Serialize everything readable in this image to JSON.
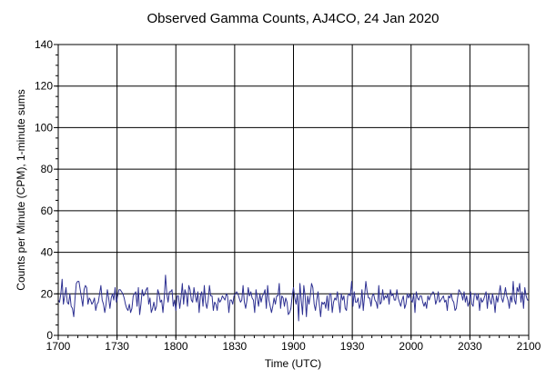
{
  "colors": {
    "background": "#ffffff",
    "grid": "#000000",
    "series": "#2e3192"
  },
  "chart_data": {
    "type": "line",
    "title": "Observed Gamma Counts, AJ4CO, 24 Jan 2020",
    "xlabel": "Time (UTC)",
    "ylabel": "Counts per Minute (CPM), 1-minute sums",
    "xlim": [
      1700,
      2100
    ],
    "ylim": [
      0,
      140
    ],
    "x_ticks": [
      "1700",
      "1730",
      "1800",
      "1830",
      "1900",
      "1930",
      "2000",
      "2030",
      "2100"
    ],
    "y_ticks": [
      "0",
      "20",
      "40",
      "60",
      "80",
      "100",
      "120",
      "140"
    ],
    "grid": true,
    "legend": "none",
    "series": [
      {
        "sample_interval": "1 minute",
        "start": "1700",
        "end": "2100",
        "values": [
          17,
          16,
          20,
          27,
          15,
          19,
          23,
          16,
          15,
          20,
          14,
          13,
          9,
          18,
          25,
          26,
          26,
          22,
          18,
          14,
          22,
          24,
          23,
          15,
          18,
          17,
          15,
          16,
          18,
          12,
          15,
          16,
          20,
          24,
          17,
          15,
          11,
          15,
          22,
          18,
          13,
          18,
          20,
          17,
          23,
          16,
          19,
          22,
          22,
          21,
          20,
          18,
          15,
          13,
          12,
          15,
          11,
          13,
          19,
          20,
          21,
          14,
          23,
          10,
          15,
          22,
          19,
          20,
          22,
          23,
          15,
          18,
          11,
          13,
          16,
          12,
          14,
          22,
          20,
          16,
          17,
          11,
          18,
          29,
          20,
          16,
          21,
          21,
          22,
          14,
          17,
          12,
          19,
          19,
          13,
          18,
          25,
          15,
          22,
          20,
          14,
          24,
          22,
          17,
          16,
          23,
          19,
          16,
          21,
          11,
          19,
          21,
          14,
          24,
          16,
          13,
          17,
          24,
          19,
          19,
          12,
          16,
          15,
          12,
          18,
          16,
          17,
          19,
          18,
          17,
          20,
          19,
          11,
          17,
          17,
          15,
          19,
          20,
          21,
          20,
          18,
          16,
          17,
          24,
          16,
          13,
          17,
          23,
          19,
          21,
          18,
          17,
          11,
          22,
          18,
          14,
          20,
          16,
          19,
          20,
          22,
          13,
          24,
          17,
          14,
          11,
          14,
          18,
          15,
          19,
          19,
          25,
          13,
          19,
          18,
          14,
          18,
          16,
          10,
          11,
          13,
          19,
          23,
          18,
          15,
          20,
          7,
          25,
          17,
          10,
          24,
          19,
          9,
          19,
          15,
          19,
          25,
          23,
          15,
          12,
          17,
          21,
          15,
          9,
          16,
          15,
          16,
          13,
          19,
          12,
          20,
          20,
          11,
          16,
          18,
          17,
          21,
          16,
          11,
          20,
          17,
          19,
          13,
          12,
          19,
          20,
          19,
          26,
          14,
          21,
          16,
          16,
          18,
          13,
          15,
          22,
          12,
          19,
          26,
          21,
          18,
          18,
          14,
          19,
          20,
          17,
          16,
          13,
          24,
          15,
          16,
          22,
          17,
          19,
          18,
          20,
          15,
          22,
          19,
          20,
          17,
          17,
          22,
          18,
          16,
          14,
          17,
          19,
          13,
          15,
          20,
          18,
          20,
          17,
          16,
          20,
          11,
          21,
          18,
          17,
          19,
          19,
          16,
          14,
          16,
          13,
          19,
          17,
          19,
          20,
          21,
          20,
          15,
          17,
          21,
          16,
          17,
          18,
          19,
          16,
          17,
          12,
          19,
          18,
          20,
          17,
          16,
          12,
          13,
          18,
          22,
          21,
          20,
          17,
          21,
          16,
          19,
          14,
          16,
          21,
          15,
          14,
          20,
          20,
          17,
          20,
          12,
          18,
          16,
          17,
          19,
          21,
          13,
          20,
          17,
          15,
          20,
          17,
          11,
          19,
          16,
          20,
          24,
          18,
          16,
          19,
          23,
          19,
          17,
          13,
          19,
          16,
          26,
          17,
          15,
          23,
          21,
          25,
          16,
          21,
          13,
          23,
          19,
          17,
          17
        ]
      }
    ]
  }
}
